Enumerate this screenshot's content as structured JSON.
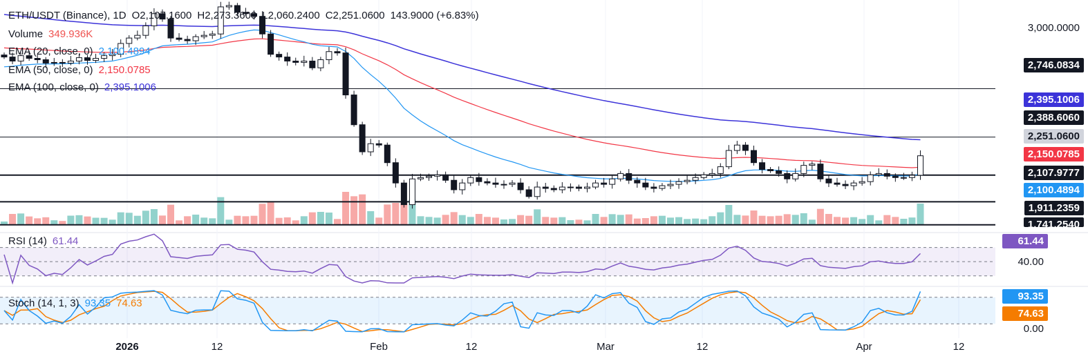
{
  "legend": {
    "symbol": "ETH/USDT (Binance), 1D",
    "open": "O2,107.1600",
    "high": "H2,273.3600",
    "low": "L2,060.2400",
    "close": "C2,251.0600",
    "change": "143.9000 (+6.83%)",
    "volume_label": "Volume",
    "volume_value": "349.936K",
    "ema20_label": "EMA (20, close, 0)",
    "ema20_value": "2,100.4894",
    "ema50_label": "EMA (50, close, 0)",
    "ema50_value": "2,150.0785",
    "ema100_label": "EMA (100, close, 0)",
    "ema100_value": "2,395.1006",
    "rsi_label": "RSI (14)",
    "rsi_value": "61.44",
    "stoch_label": "Stoch (14, 1, 3)",
    "stoch_k": "93.35",
    "stoch_d": "74.63"
  },
  "price_axis": {
    "tick_3000": "3,000.0000",
    "hline_2746": "2,746.0834",
    "ema100": "2,395.1006",
    "hline_2388": "2,388.6060",
    "last": "2,251.0600",
    "ema50": "2,150.0785",
    "hline_2107": "2,107.9777",
    "ema20": "2,100.4894",
    "hline_1911": "1,911.2359",
    "hline_1741": "1,741.2540"
  },
  "rsi_axis": {
    "value": "61.44",
    "tick": "40.00"
  },
  "stoch_axis": {
    "k": "93.35",
    "d": "74.63",
    "tick": "0.00"
  },
  "x_axis": [
    "2026",
    "12",
    "Feb",
    "12",
    "Mar",
    "12",
    "Apr",
    "12"
  ],
  "colors": {
    "up": "#26a69a",
    "down": "#ef5350",
    "candle_up_fill": "#ffffff",
    "candle": "#131722",
    "ema20": "#2196f3",
    "ema50": "#f23645",
    "ema100": "#3c33d9",
    "rsi": "#7e57c2",
    "stoch_k": "#2196f3",
    "stoch_d": "#f57c00"
  },
  "chart_data": {
    "type": "candlestick",
    "title": "ETH/USDT (Binance), 1D",
    "dates": [
      "2025-12-19",
      "2025-12-20",
      "2025-12-21",
      "2025-12-22",
      "2025-12-23",
      "2025-12-24",
      "2025-12-25",
      "2025-12-26",
      "2025-12-27",
      "2025-12-28",
      "2025-12-29",
      "2025-12-30",
      "2025-12-31",
      "2026-01-01",
      "2026-01-02",
      "2026-01-03",
      "2026-01-04",
      "2026-01-05",
      "2026-01-06",
      "2026-01-07",
      "2026-01-08",
      "2026-01-09",
      "2026-01-10",
      "2026-01-11",
      "2026-01-12",
      "2026-01-13",
      "2026-01-14",
      "2026-01-15",
      "2026-01-16",
      "2026-01-17",
      "2026-01-18",
      "2026-01-19",
      "2026-01-20",
      "2026-01-21",
      "2026-01-22",
      "2026-01-23",
      "2026-01-24",
      "2026-01-25",
      "2026-01-26",
      "2026-01-27",
      "2026-01-28",
      "2026-01-29",
      "2026-01-30",
      "2026-01-31",
      "2026-02-01",
      "2026-02-02",
      "2026-02-03",
      "2026-02-04",
      "2026-02-05",
      "2026-02-06",
      "2026-02-07",
      "2026-02-08",
      "2026-02-09",
      "2026-02-10",
      "2026-02-11",
      "2026-02-12",
      "2026-02-13",
      "2026-02-14",
      "2026-02-15",
      "2026-02-16",
      "2026-02-17",
      "2026-02-18",
      "2026-02-19",
      "2026-02-20",
      "2026-02-21",
      "2026-02-22",
      "2026-02-23",
      "2026-02-24",
      "2026-02-25",
      "2026-02-26",
      "2026-02-27",
      "2026-02-28",
      "2026-03-01",
      "2026-03-02",
      "2026-03-03",
      "2026-03-04",
      "2026-03-05",
      "2026-03-06",
      "2026-03-07",
      "2026-03-08",
      "2026-03-09",
      "2026-03-10",
      "2026-03-11",
      "2026-03-12",
      "2026-03-13",
      "2026-03-14",
      "2026-03-15",
      "2026-03-16",
      "2026-03-17",
      "2026-03-18",
      "2026-03-19",
      "2026-03-20",
      "2026-03-21",
      "2026-03-22",
      "2026-03-23",
      "2026-03-24",
      "2026-03-25",
      "2026-03-26",
      "2026-03-27",
      "2026-03-28",
      "2026-03-29",
      "2026-03-30",
      "2026-03-31",
      "2026-04-01",
      "2026-04-02",
      "2026-04-03",
      "2026-04-04",
      "2026-04-05",
      "2026-04-06",
      "2026-04-07",
      "2026-04-08"
    ],
    "close": [
      2980,
      2950,
      2990,
      2970,
      2960,
      2935,
      2940,
      2935,
      2950,
      2975,
      2955,
      2970,
      2990,
      3000,
      3080,
      3120,
      3140,
      3210,
      3300,
      3260,
      3120,
      3110,
      3100,
      3130,
      3140,
      3150,
      3350,
      3360,
      3310,
      3300,
      3280,
      3150,
      3000,
      2980,
      2950,
      2940,
      2950,
      2900,
      2960,
      3020,
      3010,
      2700,
      2480,
      2280,
      2340,
      2330,
      2200,
      2050,
      1890,
      2080,
      2090,
      2100,
      2110,
      2070,
      2000,
      2050,
      2090,
      2060,
      2050,
      2040,
      2040,
      2050,
      2000,
      1950,
      2020,
      2010,
      2000,
      2020,
      2020,
      2010,
      2020,
      2050,
      2040,
      2080,
      2120,
      2070,
      2050,
      2020,
      2010,
      2030,
      2040,
      2060,
      2070,
      2090,
      2110,
      2120,
      2170,
      2290,
      2330,
      2290,
      2200,
      2150,
      2140,
      2120,
      2080,
      2120,
      2180,
      2190,
      2080,
      2050,
      2040,
      2030,
      2050,
      2060,
      2110,
      2120,
      2100,
      2090,
      2090,
      2107,
      2251
    ],
    "ema20_last": 2100.4894,
    "ema50_last": 2150.0785,
    "ema100_last": 2395.1006,
    "horizontal_lines": [
      2746.0834,
      2388.606,
      2107.9777,
      1911.2359,
      1741.254
    ],
    "rsi_last": 61.44,
    "stoch_k_last": 93.35,
    "stoch_d_last": 74.63,
    "ylabel": "",
    "xlabel": ""
  }
}
